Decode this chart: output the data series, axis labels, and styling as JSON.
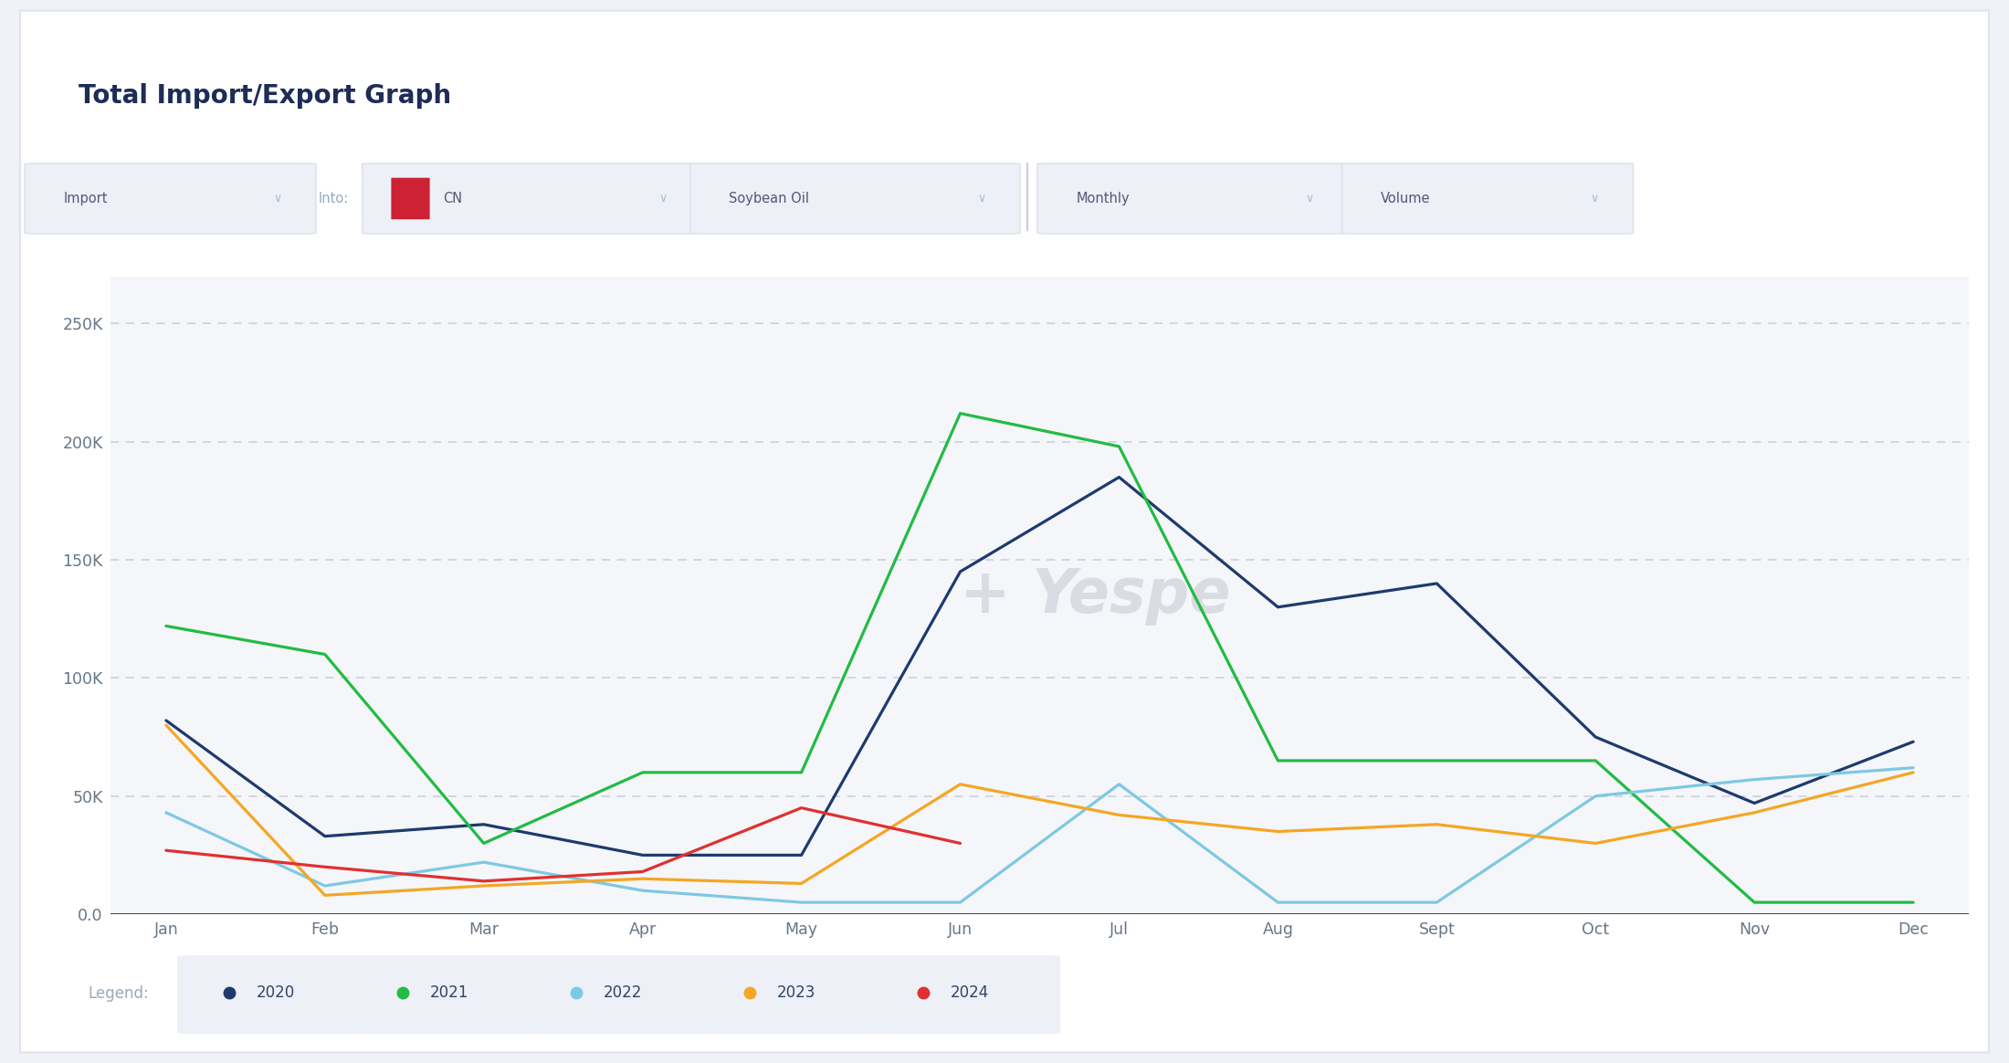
{
  "title": "Total Import/Export Graph",
  "months": [
    "Jan",
    "Feb",
    "Mar",
    "Apr",
    "May",
    "Jun",
    "Jul",
    "Aug",
    "Sept",
    "Oct",
    "Nov",
    "Dec"
  ],
  "series": [
    {
      "year": "2020",
      "color": "#1e3a6e",
      "data": [
        82000,
        33000,
        38000,
        25000,
        25000,
        145000,
        185000,
        130000,
        140000,
        75000,
        47000,
        73000
      ]
    },
    {
      "year": "2021",
      "color": "#22bb44",
      "data": [
        122000,
        110000,
        30000,
        60000,
        60000,
        212000,
        198000,
        65000,
        65000,
        65000,
        5000,
        5000
      ]
    },
    {
      "year": "2022",
      "color": "#7ec8e3",
      "data": [
        43000,
        12000,
        22000,
        10000,
        5000,
        5000,
        55000,
        5000,
        5000,
        50000,
        57000,
        62000
      ]
    },
    {
      "year": "2023",
      "color": "#f5a623",
      "data": [
        80000,
        8000,
        12000,
        15000,
        13000,
        55000,
        42000,
        35000,
        38000,
        30000,
        43000,
        60000
      ]
    },
    {
      "year": "2024",
      "color": "#e03030",
      "data": [
        27000,
        20000,
        14000,
        18000,
        45000,
        30000,
        null,
        null,
        null,
        null,
        null,
        null
      ]
    }
  ],
  "yticks": [
    0,
    50000,
    100000,
    150000,
    200000,
    250000
  ],
  "ylabels": [
    "0.0",
    "50K",
    "100K",
    "150K",
    "200K",
    "250K"
  ],
  "ylim": [
    0,
    270000
  ],
  "chart_bg": "#f4f6f9",
  "plot_bg": "#f4f6f9",
  "grid_color": "#c8cdd8",
  "title_color": "#1e2d55",
  "watermark_text": "+ Yespe",
  "watermark_color": "#d5d8e0",
  "btn_bg": "#edf0f7",
  "btn_border": "#dde0ea",
  "btn_text": "#555577",
  "label_text": "#99aabb",
  "legend_text": "#334466",
  "tick_color": "#667788",
  "axis_line_color": "#1e2d55",
  "separator_color": "#e0e3ec"
}
